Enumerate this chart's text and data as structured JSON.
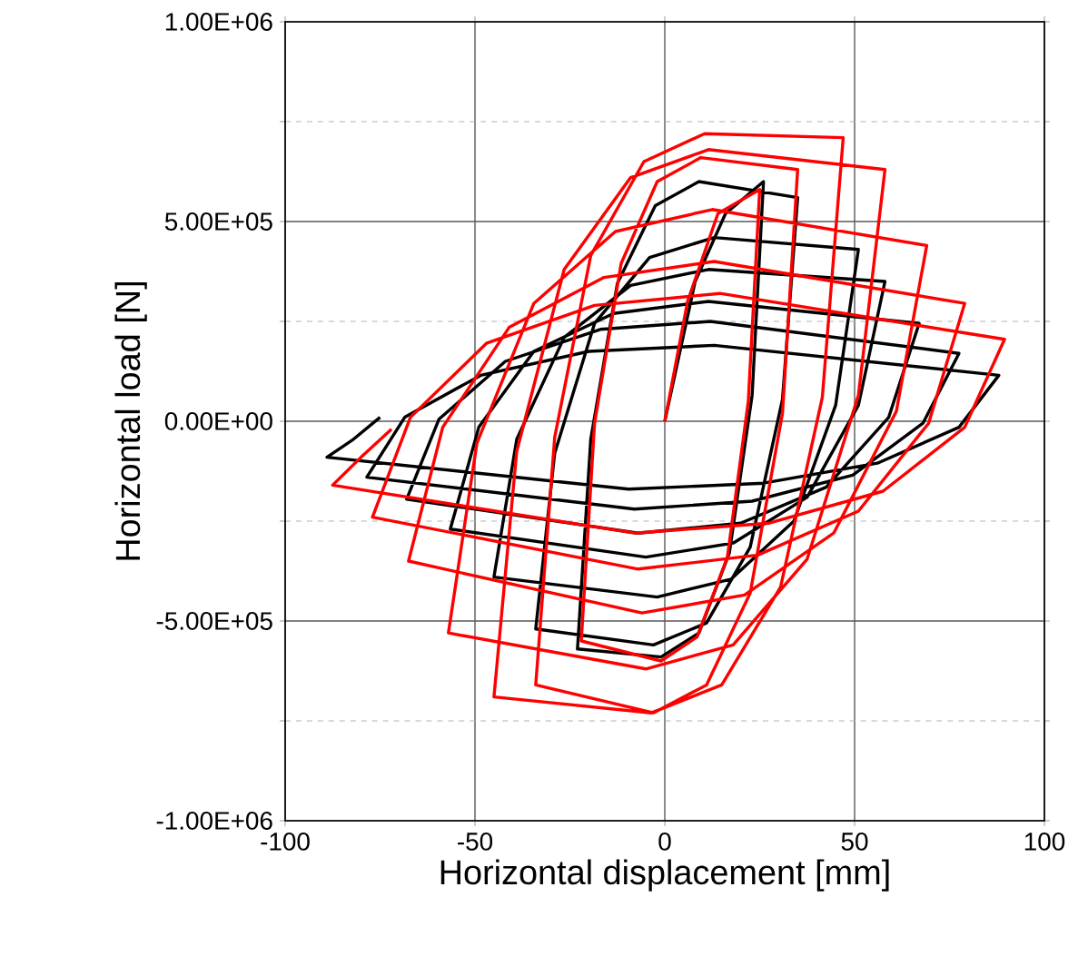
{
  "chart_data": {
    "type": "line",
    "xlabel": "Horizontal displacement [mm]",
    "ylabel": "Horizontal load [N]",
    "xlim": [
      -100,
      100
    ],
    "ylim": [
      -1000000,
      1000000
    ],
    "xticks": [
      -100,
      -50,
      0,
      50,
      100
    ],
    "yticks": [
      {
        "value": -1000000,
        "label": "-1.00E+06"
      },
      {
        "value": -750000,
        "label": null
      },
      {
        "value": -500000,
        "label": "-5.00E+05"
      },
      {
        "value": -250000,
        "label": null
      },
      {
        "value": 0,
        "label": "0.00E+00"
      },
      {
        "value": 250000,
        "label": null
      },
      {
        "value": 500000,
        "label": "5.00E+05"
      },
      {
        "value": 750000,
        "label": null
      },
      {
        "value": 1000000,
        "label": "1.00E+06"
      }
    ],
    "grid": true,
    "series": [
      {
        "color": "#000000",
        "x": [
          0,
          8,
          16,
          26,
          23,
          17,
          9,
          -1,
          -23,
          -19.5,
          -12.5,
          -2.5,
          9,
          35,
          31,
          22.5,
          11,
          -3,
          -34,
          -29,
          -18.5,
          -4,
          13,
          51,
          45,
          34,
          17.5,
          -2,
          -45,
          -39,
          -26.5,
          -9,
          11.5,
          58,
          51,
          37.5,
          18,
          -5,
          -56.5,
          -49,
          -34.5,
          -13.5,
          11.5,
          67,
          59,
          42.5,
          20,
          -7,
          -68,
          -59.5,
          -42,
          -17,
          12,
          77.5,
          68,
          49.5,
          23,
          -8,
          -78.5,
          -68.5,
          -48.5,
          -20,
          13,
          88,
          77.5,
          56,
          26,
          -9.5,
          -89,
          -82,
          -75
        ],
        "values": [
          0,
          350000,
          520000,
          600000,
          65000,
          -330000,
          -530000,
          -590000,
          -570000,
          -45000,
          345000,
          540000,
          600000,
          560000,
          55000,
          -315000,
          -505000,
          -560000,
          -520000,
          -80000,
          245000,
          410000,
          460000,
          430000,
          40000,
          -250000,
          -395000,
          -440000,
          -390000,
          -45000,
          210000,
          340000,
          380000,
          350000,
          40000,
          -190000,
          -305000,
          -340000,
          -270000,
          -15000,
          175000,
          270000,
          300000,
          245000,
          10000,
          -165000,
          -255000,
          -280000,
          -195000,
          5000,
          150000,
          230000,
          250000,
          170000,
          -5000,
          -135000,
          -200000,
          -220000,
          -140000,
          10000,
          115000,
          175000,
          190000,
          115000,
          -15000,
          -105000,
          -155000,
          -170000,
          -90000,
          -45000,
          10000
        ]
      },
      {
        "color": "#ff0000",
        "x": [
          0,
          6,
          14,
          25,
          22,
          16.5,
          8.5,
          -1,
          -22,
          -18.5,
          -11.5,
          -2,
          9.5,
          35,
          31,
          22.5,
          11,
          -3,
          -34,
          -29,
          -19.5,
          -5.5,
          10.5,
          47,
          41.5,
          30.5,
          15,
          -3.5,
          -45,
          -39,
          -26.5,
          -9,
          11.5,
          58,
          51,
          37.5,
          18,
          -5,
          -57,
          -49.5,
          -34.5,
          -13,
          12.5,
          69,
          61,
          44.5,
          21,
          -6,
          -67.5,
          -58.5,
          -41,
          -16,
          13,
          79,
          69.5,
          51,
          24.5,
          -7,
          -77,
          -67,
          -47,
          -18.5,
          14.5,
          89.5,
          79,
          57.5,
          27.5,
          -8,
          -87.5,
          -80,
          -72
        ],
        "values": [
          0,
          300000,
          520000,
          580000,
          50000,
          -340000,
          -540000,
          -600000,
          -550000,
          -5000,
          395000,
          600000,
          660000,
          630000,
          20000,
          -430000,
          -660000,
          -730000,
          -660000,
          -40000,
          415000,
          650000,
          720000,
          710000,
          60000,
          -415000,
          -660000,
          -730000,
          -690000,
          -75000,
          380000,
          610000,
          680000,
          630000,
          65000,
          -345000,
          -560000,
          -620000,
          -530000,
          -55000,
          295000,
          475000,
          530000,
          440000,
          25000,
          -280000,
          -435000,
          -480000,
          -350000,
          -15000,
          235000,
          360000,
          400000,
          295000,
          -5000,
          -225000,
          -335000,
          -370000,
          -240000,
          10000,
          195000,
          290000,
          320000,
          205000,
          -15000,
          -175000,
          -255000,
          -280000,
          -160000,
          -90000,
          -20000
        ]
      }
    ]
  }
}
